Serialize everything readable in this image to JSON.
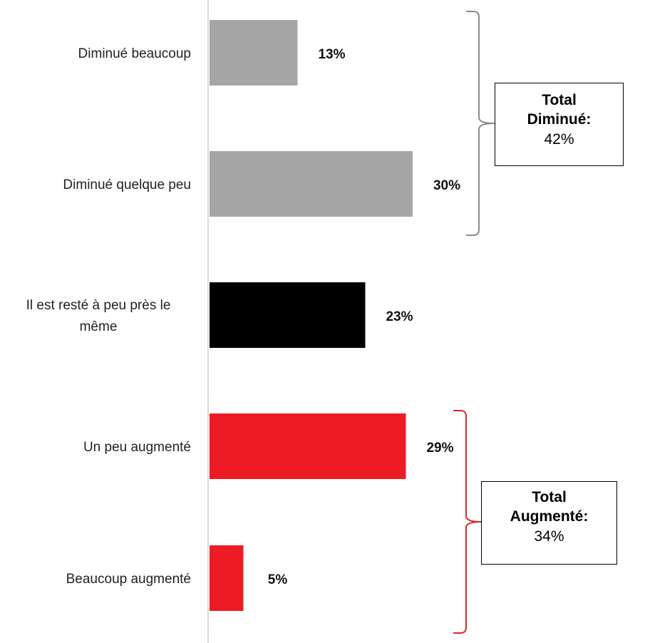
{
  "chart_data": {
    "type": "bar",
    "orientation": "horizontal",
    "categories": [
      "Diminué beaucoup",
      "Diminué quelque peu",
      "Il est resté à peu près le même",
      "Un peu augmenté",
      "Beaucoup augmenté"
    ],
    "values": [
      13,
      30,
      23,
      29,
      5
    ],
    "value_labels": [
      "13%",
      "30%",
      "23%",
      "29%",
      "5%"
    ],
    "bar_colors": [
      "#a6a6a6",
      "#a6a6a6",
      "#000000",
      "#ed1c24",
      "#ed1c24"
    ],
    "xlim": [
      0,
      48
    ],
    "title": "",
    "xlabel": "",
    "ylabel": "",
    "grid": false,
    "legend": "none"
  },
  "annotations": {
    "diminue": {
      "title": "Total Diminué:",
      "title_line1": "Total",
      "title_line2": "Diminué:",
      "value": "42%",
      "bracket_color": "#8c8c8c"
    },
    "augmente": {
      "title": "Total Augmenté:",
      "title_line1": "Total",
      "title_line2": "Augmenté:",
      "value": "34%",
      "bracket_color": "#d7262e"
    }
  }
}
